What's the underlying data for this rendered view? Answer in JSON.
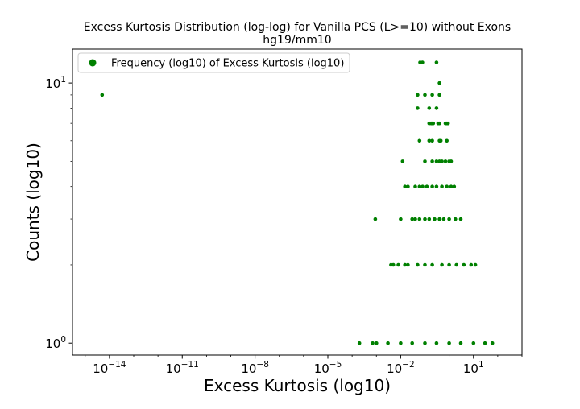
{
  "chart_data": {
    "type": "scatter",
    "title": "Excess Kurtosis Distribution (log-log) for Vanilla PCS (L>=10) without Exons",
    "subtitle": "hg19/mm10",
    "xlabel": "Excess Kurtosis (log10)",
    "ylabel": "Counts (log10)",
    "x_scale": "log",
    "y_scale": "log",
    "xlim": [
      3e-16,
      1000
    ],
    "ylim": [
      0.9,
      13.5
    ],
    "x_ticks": [
      {
        "value": 1e-14,
        "base": "10",
        "exp": "−14"
      },
      {
        "value": 1e-11,
        "base": "10",
        "exp": "−11"
      },
      {
        "value": 1e-08,
        "base": "10",
        "exp": "−8"
      },
      {
        "value": 1e-05,
        "base": "10",
        "exp": "−5"
      },
      {
        "value": 0.01,
        "base": "10",
        "exp": "−2"
      },
      {
        "value": 10,
        "base": "10",
        "exp": "1"
      }
    ],
    "y_ticks": [
      {
        "value": 1,
        "base": "10",
        "exp": "0"
      },
      {
        "value": 10,
        "base": "10",
        "exp": "1"
      }
    ],
    "grid": false,
    "legend": {
      "position": "upper-left",
      "entries": [
        "Frequency (log10) of Excess Kurtosis (log10)"
      ]
    },
    "marker_color": "#008000",
    "series": [
      {
        "name": "Frequency (log10) of Excess Kurtosis (log10)",
        "points": [
          [
            5e-15,
            9
          ],
          [
            0.063,
            12
          ],
          [
            0.079,
            12
          ],
          [
            0.3,
            12
          ],
          [
            0.4,
            10
          ],
          [
            0.05,
            9
          ],
          [
            0.1,
            9
          ],
          [
            0.2,
            9
          ],
          [
            0.4,
            9
          ],
          [
            0.05,
            8
          ],
          [
            0.15,
            8
          ],
          [
            0.3,
            8
          ],
          [
            0.15,
            7
          ],
          [
            0.18,
            7
          ],
          [
            0.2,
            7
          ],
          [
            0.22,
            7
          ],
          [
            0.35,
            7
          ],
          [
            0.4,
            7
          ],
          [
            0.7,
            7
          ],
          [
            0.8,
            7
          ],
          [
            0.9,
            7
          ],
          [
            0.06,
            6
          ],
          [
            0.15,
            6
          ],
          [
            0.2,
            6
          ],
          [
            0.4,
            6
          ],
          [
            0.45,
            6
          ],
          [
            0.8,
            6
          ],
          [
            0.012,
            5
          ],
          [
            0.1,
            5
          ],
          [
            0.2,
            5
          ],
          [
            0.3,
            5
          ],
          [
            0.4,
            5
          ],
          [
            0.5,
            5
          ],
          [
            0.7,
            5
          ],
          [
            1.0,
            5
          ],
          [
            1.2,
            5
          ],
          [
            0.015,
            4
          ],
          [
            0.02,
            4
          ],
          [
            0.04,
            4
          ],
          [
            0.06,
            4
          ],
          [
            0.08,
            4
          ],
          [
            0.12,
            4
          ],
          [
            0.2,
            4
          ],
          [
            0.3,
            4
          ],
          [
            0.5,
            4
          ],
          [
            0.8,
            4
          ],
          [
            1.2,
            4
          ],
          [
            1.6,
            4
          ],
          [
            0.0009,
            3
          ],
          [
            0.01,
            3
          ],
          [
            0.03,
            3
          ],
          [
            0.04,
            3
          ],
          [
            0.06,
            3
          ],
          [
            0.1,
            3
          ],
          [
            0.15,
            3
          ],
          [
            0.25,
            3
          ],
          [
            0.4,
            3
          ],
          [
            0.6,
            3
          ],
          [
            1.0,
            3
          ],
          [
            1.8,
            3
          ],
          [
            3.0,
            3
          ],
          [
            0.004,
            2
          ],
          [
            0.005,
            2
          ],
          [
            0.008,
            2
          ],
          [
            0.015,
            2
          ],
          [
            0.02,
            2
          ],
          [
            0.05,
            2
          ],
          [
            0.1,
            2
          ],
          [
            0.2,
            2
          ],
          [
            0.5,
            2
          ],
          [
            1.0,
            2
          ],
          [
            2.0,
            2
          ],
          [
            4.0,
            2
          ],
          [
            8.0,
            2
          ],
          [
            12,
            2
          ],
          [
            0.0002,
            1
          ],
          [
            0.0007,
            1
          ],
          [
            0.001,
            1
          ],
          [
            0.003,
            1
          ],
          [
            0.01,
            1
          ],
          [
            0.03,
            1
          ],
          [
            0.1,
            1
          ],
          [
            0.3,
            1
          ],
          [
            1.0,
            1
          ],
          [
            3.0,
            1
          ],
          [
            10,
            1
          ],
          [
            30,
            1
          ],
          [
            60,
            1
          ]
        ]
      }
    ]
  }
}
